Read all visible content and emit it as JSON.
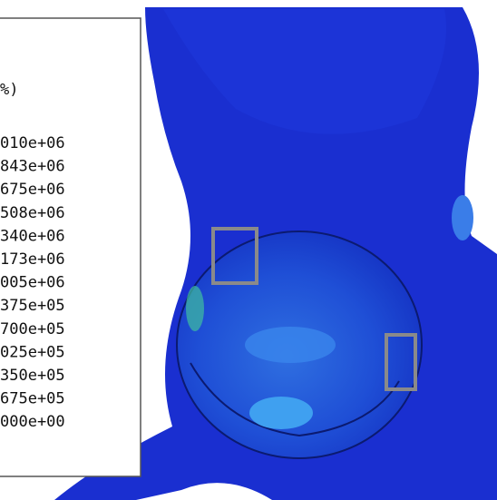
{
  "legend": {
    "header": "%)",
    "labels": [
      "010e+06",
      "843e+06",
      "675e+06",
      "508e+06",
      "340e+06",
      "173e+06",
      "005e+06",
      "375e+05",
      "700e+05",
      "025e+05",
      "350e+05",
      "675e+05",
      "000e+00"
    ]
  }
}
